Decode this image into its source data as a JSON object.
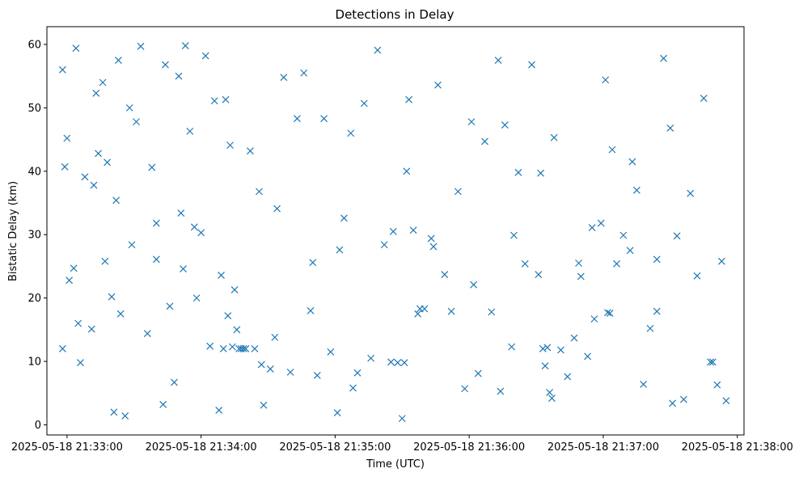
{
  "chart_data": {
    "type": "scatter",
    "title": "Detections in Delay",
    "xlabel": "Time (UTC)",
    "ylabel": "Bistatic Delay (km)",
    "marker": "x",
    "color": "#1f77b4",
    "grid": false,
    "legend": "none",
    "xlim": [
      "2025-05-18 21:32:51",
      "2025-05-18 21:38:03"
    ],
    "ylim": [
      -1.6,
      62.8
    ],
    "xticks": [
      "2025-05-18 21:33:00",
      "2025-05-18 21:34:00",
      "2025-05-18 21:35:00",
      "2025-05-18 21:36:00",
      "2025-05-18 21:37:00",
      "2025-05-18 21:38:00"
    ],
    "yticks": [
      0,
      10,
      20,
      30,
      40,
      50,
      60
    ],
    "x": [
      "2025-05-18 21:32:58",
      "2025-05-18 21:32:58",
      "2025-05-18 21:32:59",
      "2025-05-18 21:33:00",
      "2025-05-18 21:33:01",
      "2025-05-18 21:33:03",
      "2025-05-18 21:33:04",
      "2025-05-18 21:33:06",
      "2025-05-18 21:33:08",
      "2025-05-18 21:33:11",
      "2025-05-18 21:33:12",
      "2025-05-18 21:33:13",
      "2025-05-18 21:33:14",
      "2025-05-18 21:33:16",
      "2025-05-18 21:33:18",
      "2025-05-18 21:33:20",
      "2025-05-18 21:33:21",
      "2025-05-18 21:33:23",
      "2025-05-18 21:33:24",
      "2025-05-18 21:33:26",
      "2025-05-18 21:33:28",
      "2025-05-18 21:33:29",
      "2025-05-18 21:33:31",
      "2025-05-18 21:33:33",
      "2025-05-18 21:33:36",
      "2025-05-18 21:33:38",
      "2025-05-18 21:33:40",
      "2025-05-18 21:33:43",
      "2025-05-18 21:33:44",
      "2025-05-18 21:33:46",
      "2025-05-18 21:33:48",
      "2025-05-18 21:33:50",
      "2025-05-18 21:33:51",
      "2025-05-18 21:33:53",
      "2025-05-18 21:33:55",
      "2025-05-18 21:33:58",
      "2025-05-18 21:34:00",
      "2025-05-18 21:34:02",
      "2025-05-18 21:34:04",
      "2025-05-18 21:34:06",
      "2025-05-18 21:34:08",
      "2025-05-18 21:34:10",
      "2025-05-18 21:34:11",
      "2025-05-18 21:34:12",
      "2025-05-18 21:34:13",
      "2025-05-18 21:34:14",
      "2025-05-18 21:34:15",
      "2025-05-18 21:34:16",
      "2025-05-18 21:34:17",
      "2025-05-18 21:34:18",
      "2025-05-18 21:34:19",
      "2025-05-18 21:34:20",
      "2025-05-18 21:34:22",
      "2025-05-18 21:34:24",
      "2025-05-18 21:34:26",
      "2025-05-18 21:34:28",
      "2025-05-18 21:34:31",
      "2025-05-18 21:34:34",
      "2025-05-18 21:34:37",
      "2025-05-18 21:34:40",
      "2025-05-18 21:34:43",
      "2025-05-18 21:34:46",
      "2025-05-18 21:34:49",
      "2025-05-18 21:34:52",
      "2025-05-18 21:34:55",
      "2025-05-18 21:34:58",
      "2025-05-18 21:35:01",
      "2025-05-18 21:35:04",
      "2025-05-18 21:35:07",
      "2025-05-18 21:35:10",
      "2025-05-18 21:35:13",
      "2025-05-18 21:35:16",
      "2025-05-18 21:35:19",
      "2025-05-18 21:35:22",
      "2025-05-18 21:35:25",
      "2025-05-18 21:35:28",
      "2025-05-18 21:35:30",
      "2025-05-18 21:35:31",
      "2025-05-18 21:35:32",
      "2025-05-18 21:35:33",
      "2025-05-18 21:35:35",
      "2025-05-18 21:35:37",
      "2025-05-18 21:35:40",
      "2025-05-18 21:35:43",
      "2025-05-18 21:35:46",
      "2025-05-18 21:35:49",
      "2025-05-18 21:35:52",
      "2025-05-18 21:35:55",
      "2025-05-18 21:35:58",
      "2025-05-18 21:36:01",
      "2025-05-18 21:36:04",
      "2025-05-18 21:36:07",
      "2025-05-18 21:36:10",
      "2025-05-18 21:36:13",
      "2025-05-18 21:36:16",
      "2025-05-18 21:36:19",
      "2025-05-18 21:36:22",
      "2025-05-18 21:36:25",
      "2025-05-18 21:36:28",
      "2025-05-18 21:36:31",
      "2025-05-18 21:36:32",
      "2025-05-18 21:36:33",
      "2025-05-18 21:36:34",
      "2025-05-18 21:36:35",
      "2025-05-18 21:36:36",
      "2025-05-18 21:36:38",
      "2025-05-18 21:36:41",
      "2025-05-18 21:36:44",
      "2025-05-18 21:36:47",
      "2025-05-18 21:36:50",
      "2025-05-18 21:36:53",
      "2025-05-18 21:36:56",
      "2025-05-18 21:36:59",
      "2025-05-18 21:37:01",
      "2025-05-18 21:37:02",
      "2025-05-18 21:37:03",
      "2025-05-18 21:37:04",
      "2025-05-18 21:37:06",
      "2025-05-18 21:37:09",
      "2025-05-18 21:37:12",
      "2025-05-18 21:37:15",
      "2025-05-18 21:37:18",
      "2025-05-18 21:37:21",
      "2025-05-18 21:37:24",
      "2025-05-18 21:37:27",
      "2025-05-18 21:37:30",
      "2025-05-18 21:37:33",
      "2025-05-18 21:37:36",
      "2025-05-18 21:37:39",
      "2025-05-18 21:37:42",
      "2025-05-18 21:37:45",
      "2025-05-18 21:37:48",
      "2025-05-18 21:37:51",
      "2025-05-18 21:37:53",
      "2025-05-18 21:37:55",
      "2025-05-18 21:33:05",
      "2025-05-18 21:33:22",
      "2025-05-18 21:33:40",
      "2025-05-18 21:33:57",
      "2025-05-18 21:34:09",
      "2025-05-18 21:34:33",
      "2025-05-18 21:34:50",
      "2025-05-18 21:35:08",
      "2025-05-18 21:35:26",
      "2025-05-18 21:35:44",
      "2025-05-18 21:36:02",
      "2025-05-18 21:36:20",
      "2025-05-18 21:36:37",
      "2025-05-18 21:36:55",
      "2025-05-18 21:37:13",
      "2025-05-18 21:37:31",
      "2025-05-18 21:37:49",
      "2025-05-18 21:33:17",
      "2025-05-18 21:33:52",
      "2025-05-18 21:34:27",
      "2025-05-18 21:35:02",
      "2025-05-18 21:35:38",
      "2025-05-18 21:36:14",
      "2025-05-18 21:36:49",
      "2025-05-18 21:37:24"
    ],
    "y": [
      56.0,
      12.0,
      40.7,
      45.2,
      22.8,
      24.7,
      59.4,
      9.8,
      39.1,
      15.1,
      37.8,
      52.3,
      42.8,
      54.0,
      41.4,
      20.2,
      2.0,
      57.5,
      17.5,
      1.4,
      50.0,
      28.4,
      47.8,
      59.7,
      14.4,
      40.6,
      31.8,
      3.2,
      56.8,
      18.7,
      6.7,
      55.0,
      33.4,
      59.8,
      46.3,
      20.0,
      30.3,
      58.2,
      12.4,
      51.1,
      2.3,
      12.0,
      51.3,
      17.2,
      44.1,
      12.3,
      21.3,
      15.0,
      12.0,
      12.0,
      12.0,
      12.0,
      43.2,
      12.0,
      36.8,
      3.1,
      8.8,
      34.1,
      54.8,
      8.3,
      48.3,
      55.5,
      18.0,
      7.8,
      48.3,
      11.5,
      1.9,
      32.6,
      46.0,
      8.2,
      50.7,
      10.5,
      59.1,
      28.4,
      9.9,
      9.8,
      1.0,
      9.8,
      40.0,
      51.3,
      30.7,
      17.5,
      18.3,
      29.4,
      53.6,
      23.7,
      17.9,
      36.8,
      5.7,
      47.8,
      8.1,
      44.7,
      17.8,
      57.5,
      47.3,
      12.3,
      39.8,
      25.4,
      56.8,
      23.7,
      39.7,
      12.0,
      9.3,
      12.2,
      5.1,
      45.3,
      11.8,
      7.6,
      13.7,
      23.4,
      10.8,
      16.7,
      31.8,
      54.4,
      17.7,
      17.6,
      43.4,
      25.4,
      29.9,
      27.5,
      37.0,
      6.4,
      15.2,
      26.1,
      57.8,
      46.8,
      29.8,
      4.0,
      36.5,
      23.5,
      51.5,
      9.9,
      6.3,
      25.8,
      3.8,
      16.0,
      35.4,
      26.1,
      31.2,
      23.6,
      13.8,
      25.6,
      5.8,
      30.5,
      28.1,
      22.1,
      29.9,
      4.2,
      31.1,
      41.5,
      3.4,
      9.9,
      25.8,
      24.6,
      9.5,
      27.6,
      18.3,
      5.3,
      25.5,
      17.9
    ]
  }
}
